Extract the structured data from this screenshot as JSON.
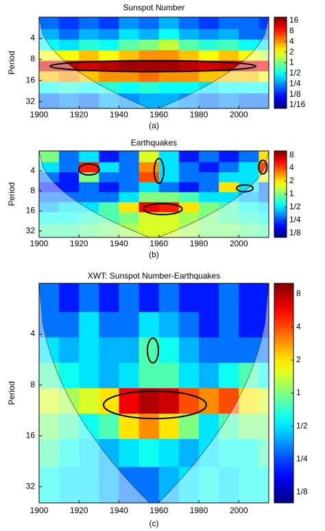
{
  "chart_data": [
    {
      "type": "heatmap",
      "title": "Sunspot Number",
      "caption": "(a)",
      "ylabel": "Period",
      "x": [
        1905,
        1915,
        1925,
        1935,
        1945,
        1955,
        1965,
        1975,
        1985,
        1995,
        2005,
        2015
      ],
      "y": [
        2.5,
        3.5,
        5,
        7,
        10,
        14,
        20,
        30
      ],
      "z": [
        [
          0.2,
          0.15,
          0.2,
          0.15,
          0.25,
          0.2,
          0.3,
          0.2,
          0.15,
          0.2,
          0.2,
          0.15
        ],
        [
          0.3,
          0.2,
          0.3,
          0.25,
          0.4,
          0.3,
          0.5,
          0.3,
          0.25,
          0.3,
          0.2,
          0.2
        ],
        [
          0.5,
          0.4,
          0.6,
          0.5,
          0.8,
          1,
          1.5,
          0.8,
          0.6,
          0.7,
          0.5,
          0.4
        ],
        [
          2,
          2,
          3,
          2,
          3,
          4,
          4,
          3,
          2,
          3,
          2,
          1.5
        ],
        [
          12,
          14,
          12,
          14,
          16,
          16,
          16,
          14,
          12,
          14,
          12,
          10
        ],
        [
          3,
          4,
          3,
          4,
          4,
          5,
          4,
          4,
          3,
          3,
          3,
          2
        ],
        [
          0.5,
          0.6,
          0.5,
          0.6,
          0.5,
          0.6,
          0.5,
          0.5,
          0.4,
          0.5,
          0.5,
          0.5
        ],
        [
          0.2,
          0.25,
          0.2,
          0.3,
          0.25,
          0.3,
          0.3,
          0.25,
          0.2,
          0.25,
          0.2,
          0.2
        ]
      ],
      "xlim": [
        1900,
        2015
      ],
      "xticks": [
        1900,
        1920,
        1940,
        1960,
        1980,
        2000
      ],
      "ylim": [
        2,
        40
      ],
      "yticks": [
        4,
        8,
        16,
        32
      ],
      "y_log": true,
      "y_reversed": true,
      "colorbar": {
        "lim": [
          0.05,
          20
        ],
        "log": true,
        "ticks": [
          16,
          8,
          4,
          2,
          1,
          {
            "value": 0.5,
            "label": "1/2"
          },
          {
            "value": 0.25,
            "label": "1/4"
          },
          {
            "value": 0.125,
            "label": "1/8"
          },
          {
            "value": 0.0625,
            "label": "1/16"
          }
        ]
      },
      "colormap": "jet",
      "cone_of_influence": true
    },
    {
      "type": "heatmap",
      "title": "Earthquakes",
      "caption": "(b)",
      "ylabel": "Period",
      "x": [
        1905,
        1915,
        1925,
        1935,
        1945,
        1955,
        1965,
        1975,
        1985,
        1995,
        2005,
        2015
      ],
      "y": [
        2.5,
        3.5,
        5,
        7,
        10,
        14,
        20,
        30
      ],
      "z": [
        [
          1,
          0.3,
          0.5,
          0.2,
          0.3,
          1.5,
          0.5,
          0.2,
          0.3,
          0.2,
          0.3,
          2
        ],
        [
          0.5,
          0.3,
          5,
          0.5,
          0.3,
          3,
          0.5,
          0.3,
          0.2,
          0.3,
          0.5,
          4
        ],
        [
          0.3,
          0.2,
          1,
          0.3,
          0.3,
          4,
          0.5,
          0.3,
          0.3,
          0.5,
          0.5,
          1.5
        ],
        [
          0.2,
          0.2,
          0.3,
          0.2,
          0.3,
          0.5,
          0.3,
          0.2,
          0.3,
          2,
          0.5,
          0.3
        ],
        [
          0.3,
          0.3,
          0.3,
          0.3,
          0.5,
          1,
          1,
          0.8,
          0.5,
          0.5,
          0.4,
          0.3
        ],
        [
          0.4,
          0.5,
          0.5,
          0.8,
          2,
          6,
          5,
          2,
          1,
          0.8,
          0.6,
          0.5
        ],
        [
          0.6,
          0.6,
          0.7,
          0.8,
          1,
          1.5,
          1.5,
          1.2,
          1,
          0.8,
          0.7,
          0.6
        ],
        [
          0.8,
          0.8,
          0.9,
          1,
          1.2,
          1.5,
          1.5,
          1.2,
          1,
          1,
          0.9,
          0.8
        ]
      ],
      "xlim": [
        1900,
        2015
      ],
      "xticks": [
        1900,
        1920,
        1940,
        1960,
        1980,
        2000
      ],
      "ylim": [
        2,
        40
      ],
      "yticks": [
        4,
        8,
        16,
        32
      ],
      "y_log": true,
      "y_reversed": true,
      "colorbar": {
        "lim": [
          0.1,
          10
        ],
        "log": true,
        "ticks": [
          8,
          4,
          2,
          1,
          {
            "value": 0.5,
            "label": "1/2"
          },
          {
            "value": 0.25,
            "label": "1/4"
          },
          {
            "value": 0.125,
            "label": "1/8"
          }
        ]
      },
      "colormap": "jet",
      "cone_of_influence": true
    },
    {
      "type": "heatmap",
      "title": "XWT: Sunspot Number-Earthquakes",
      "caption": "(c)",
      "ylabel": "Period",
      "x": [
        1905,
        1915,
        1925,
        1935,
        1945,
        1955,
        1965,
        1975,
        1985,
        1995,
        2005,
        2015
      ],
      "y": [
        2.5,
        3.5,
        5,
        7,
        10,
        14,
        20,
        30
      ],
      "z": [
        [
          0.3,
          0.2,
          0.3,
          0.2,
          0.3,
          0.2,
          0.3,
          0.2,
          0.2,
          0.3,
          0.2,
          0.2
        ],
        [
          0.3,
          0.3,
          0.5,
          0.3,
          0.3,
          0.5,
          0.4,
          0.3,
          0.2,
          0.3,
          0.2,
          0.2
        ],
        [
          0.5,
          0.4,
          0.5,
          0.4,
          0.4,
          0.8,
          0.6,
          0.4,
          0.3,
          0.3,
          0.3,
          0.3
        ],
        [
          0.8,
          0.6,
          0.5,
          0.4,
          0.5,
          0.8,
          0.8,
          0.5,
          0.4,
          0.6,
          0.8,
          0.6
        ],
        [
          1.5,
          1.2,
          1.5,
          2,
          6,
          8,
          7,
          4,
          3,
          4,
          2,
          1.5
        ],
        [
          1,
          0.8,
          0.6,
          0.8,
          2,
          3,
          2,
          1,
          0.5,
          0.8,
          1,
          1
        ],
        [
          0.8,
          0.6,
          0.5,
          0.4,
          0.5,
          0.6,
          0.5,
          0.4,
          0.5,
          0.6,
          0.6,
          0.8
        ],
        [
          0.6,
          0.5,
          0.5,
          0.4,
          0.3,
          0.3,
          0.4,
          0.5,
          0.6,
          0.5,
          0.6,
          0.6
        ]
      ],
      "xlim": [
        1900,
        2015
      ],
      "xticks": [
        1900,
        1920,
        1940,
        1960,
        1980,
        2000
      ],
      "ylim": [
        2,
        40
      ],
      "yticks": [
        4,
        8,
        16,
        32
      ],
      "y_log": true,
      "y_reversed": true,
      "colorbar": {
        "lim": [
          0.1,
          10
        ],
        "log": true,
        "ticks": [
          8,
          4,
          2,
          1,
          {
            "value": 0.5,
            "label": "1/2"
          },
          {
            "value": 0.25,
            "label": "1/4"
          },
          {
            "value": 0.125,
            "label": "1/8"
          }
        ]
      },
      "colormap": "jet",
      "cone_of_influence": true
    }
  ]
}
